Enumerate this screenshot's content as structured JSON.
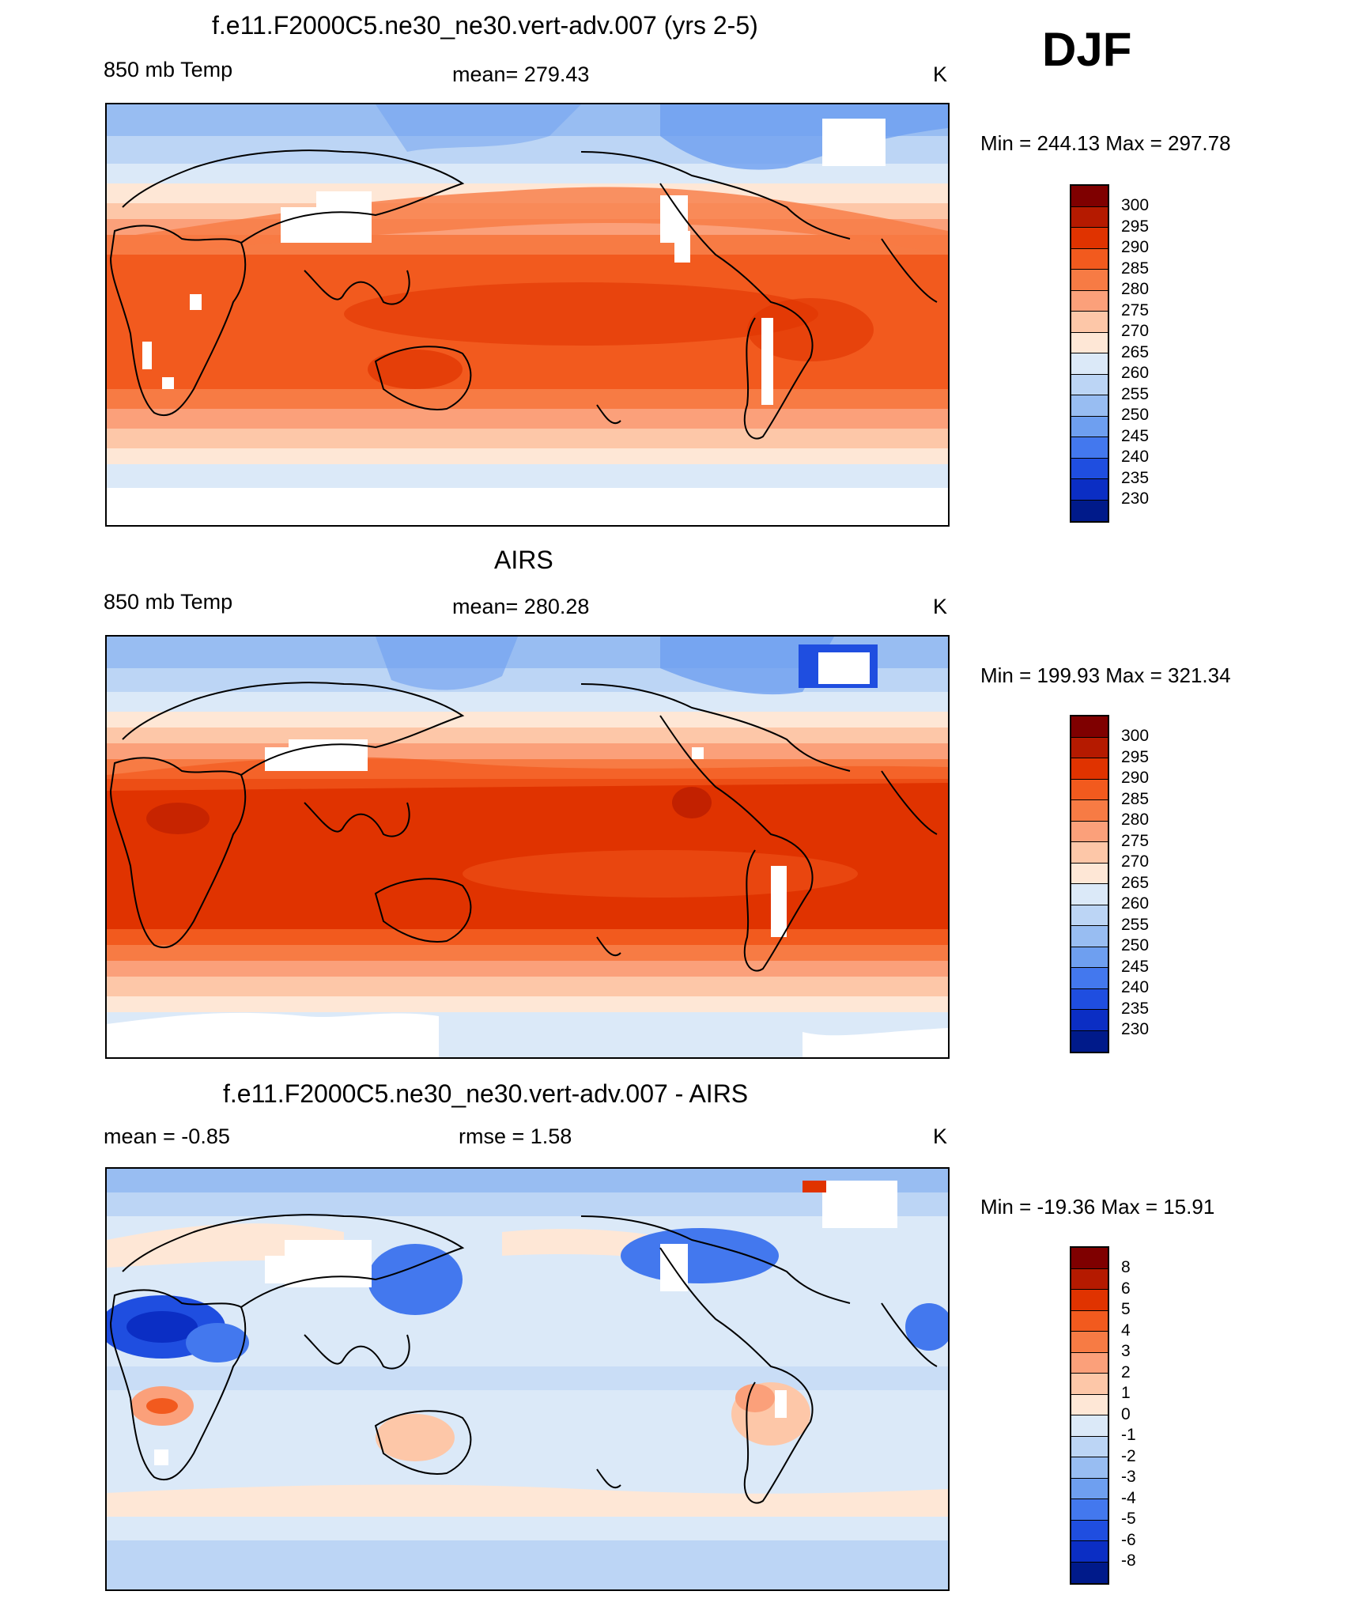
{
  "season": "DJF",
  "panels": [
    {
      "title": "f.e11.F2000C5.ne30_ne30.vert-adv.007 (yrs 2-5)",
      "left_label": "850 mb Temp",
      "center_label": "mean= 279.43",
      "right_label": "K",
      "minmax": "Min = 244.13 Max = 297.78",
      "map_kind": "model",
      "colorbar": {
        "labels": [
          "300",
          "295",
          "290",
          "285",
          "280",
          "275",
          "270",
          "265",
          "260",
          "255",
          "250",
          "245",
          "240",
          "235",
          "230"
        ],
        "colors": [
          "#7f0000",
          "#b51a00",
          "#e03300",
          "#f25a1e",
          "#f77b44",
          "#fba07a",
          "#fdc7a8",
          "#fee7d6",
          "#dbe9f8",
          "#bcd5f5",
          "#98bdf2",
          "#6e9ff0",
          "#4378ee",
          "#1f4ee0",
          "#0b2ec4",
          "#001a8a"
        ]
      }
    },
    {
      "title": "AIRS",
      "left_label": "850 mb Temp",
      "center_label": "mean= 280.28",
      "right_label": "K",
      "minmax": "Min = 199.93 Max = 321.34",
      "map_kind": "obs",
      "colorbar": {
        "labels": [
          "300",
          "295",
          "290",
          "285",
          "280",
          "275",
          "270",
          "265",
          "260",
          "255",
          "250",
          "245",
          "240",
          "235",
          "230"
        ],
        "colors": [
          "#7f0000",
          "#b51a00",
          "#e03300",
          "#f25a1e",
          "#f77b44",
          "#fba07a",
          "#fdc7a8",
          "#fee7d6",
          "#dbe9f8",
          "#bcd5f5",
          "#98bdf2",
          "#6e9ff0",
          "#4378ee",
          "#1f4ee0",
          "#0b2ec4",
          "#001a8a"
        ]
      }
    },
    {
      "title": "f.e11.F2000C5.ne30_ne30.vert-adv.007 - AIRS",
      "left_label": "mean =  -0.85",
      "center_label": "rmse =   1.58",
      "right_label": "K",
      "minmax": "Min = -19.36 Max =  15.91",
      "map_kind": "diff",
      "colorbar": {
        "labels": [
          "8",
          "6",
          "5",
          "4",
          "3",
          "2",
          "1",
          "0",
          "-1",
          "-2",
          "-3",
          "-4",
          "-5",
          "-6",
          "-8"
        ],
        "colors": [
          "#7f0000",
          "#b51a00",
          "#e03300",
          "#f25a1e",
          "#f77b44",
          "#fba07a",
          "#fdc7a8",
          "#fee7d6",
          "#dbe9f8",
          "#bcd5f5",
          "#98bdf2",
          "#6e9ff0",
          "#4378ee",
          "#1f4ee0",
          "#0b2ec4",
          "#001a8a"
        ]
      }
    }
  ]
}
